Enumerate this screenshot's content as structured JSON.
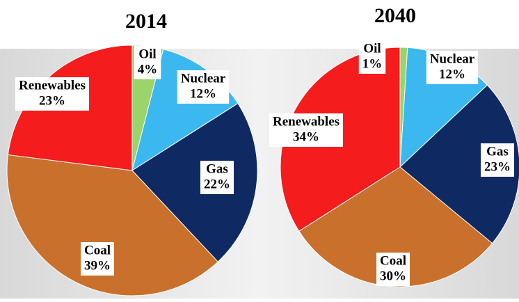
{
  "chart_data": [
    {
      "type": "pie",
      "title": "2014",
      "categories": [
        "Oil",
        "Nuclear",
        "Gas",
        "Coal",
        "Renewables"
      ],
      "values": [
        4,
        12,
        22,
        39,
        23
      ],
      "value_labels": [
        "4%",
        "12%",
        "22%",
        "39%",
        "23%"
      ],
      "colors": [
        "#9bd46a",
        "#3cb8f0",
        "#0f2a63",
        "#c8702c",
        "#f41c1c"
      ]
    },
    {
      "type": "pie",
      "title": "2040",
      "categories": [
        "Oil",
        "Nuclear",
        "Gas",
        "Coal",
        "Renewables"
      ],
      "values": [
        1,
        12,
        23,
        30,
        34
      ],
      "value_labels": [
        "1%",
        "12%",
        "23%",
        "30%",
        "34%"
      ],
      "colors": [
        "#9bd46a",
        "#3cb8f0",
        "#0f2a63",
        "#c8702c",
        "#f41c1c"
      ]
    }
  ]
}
